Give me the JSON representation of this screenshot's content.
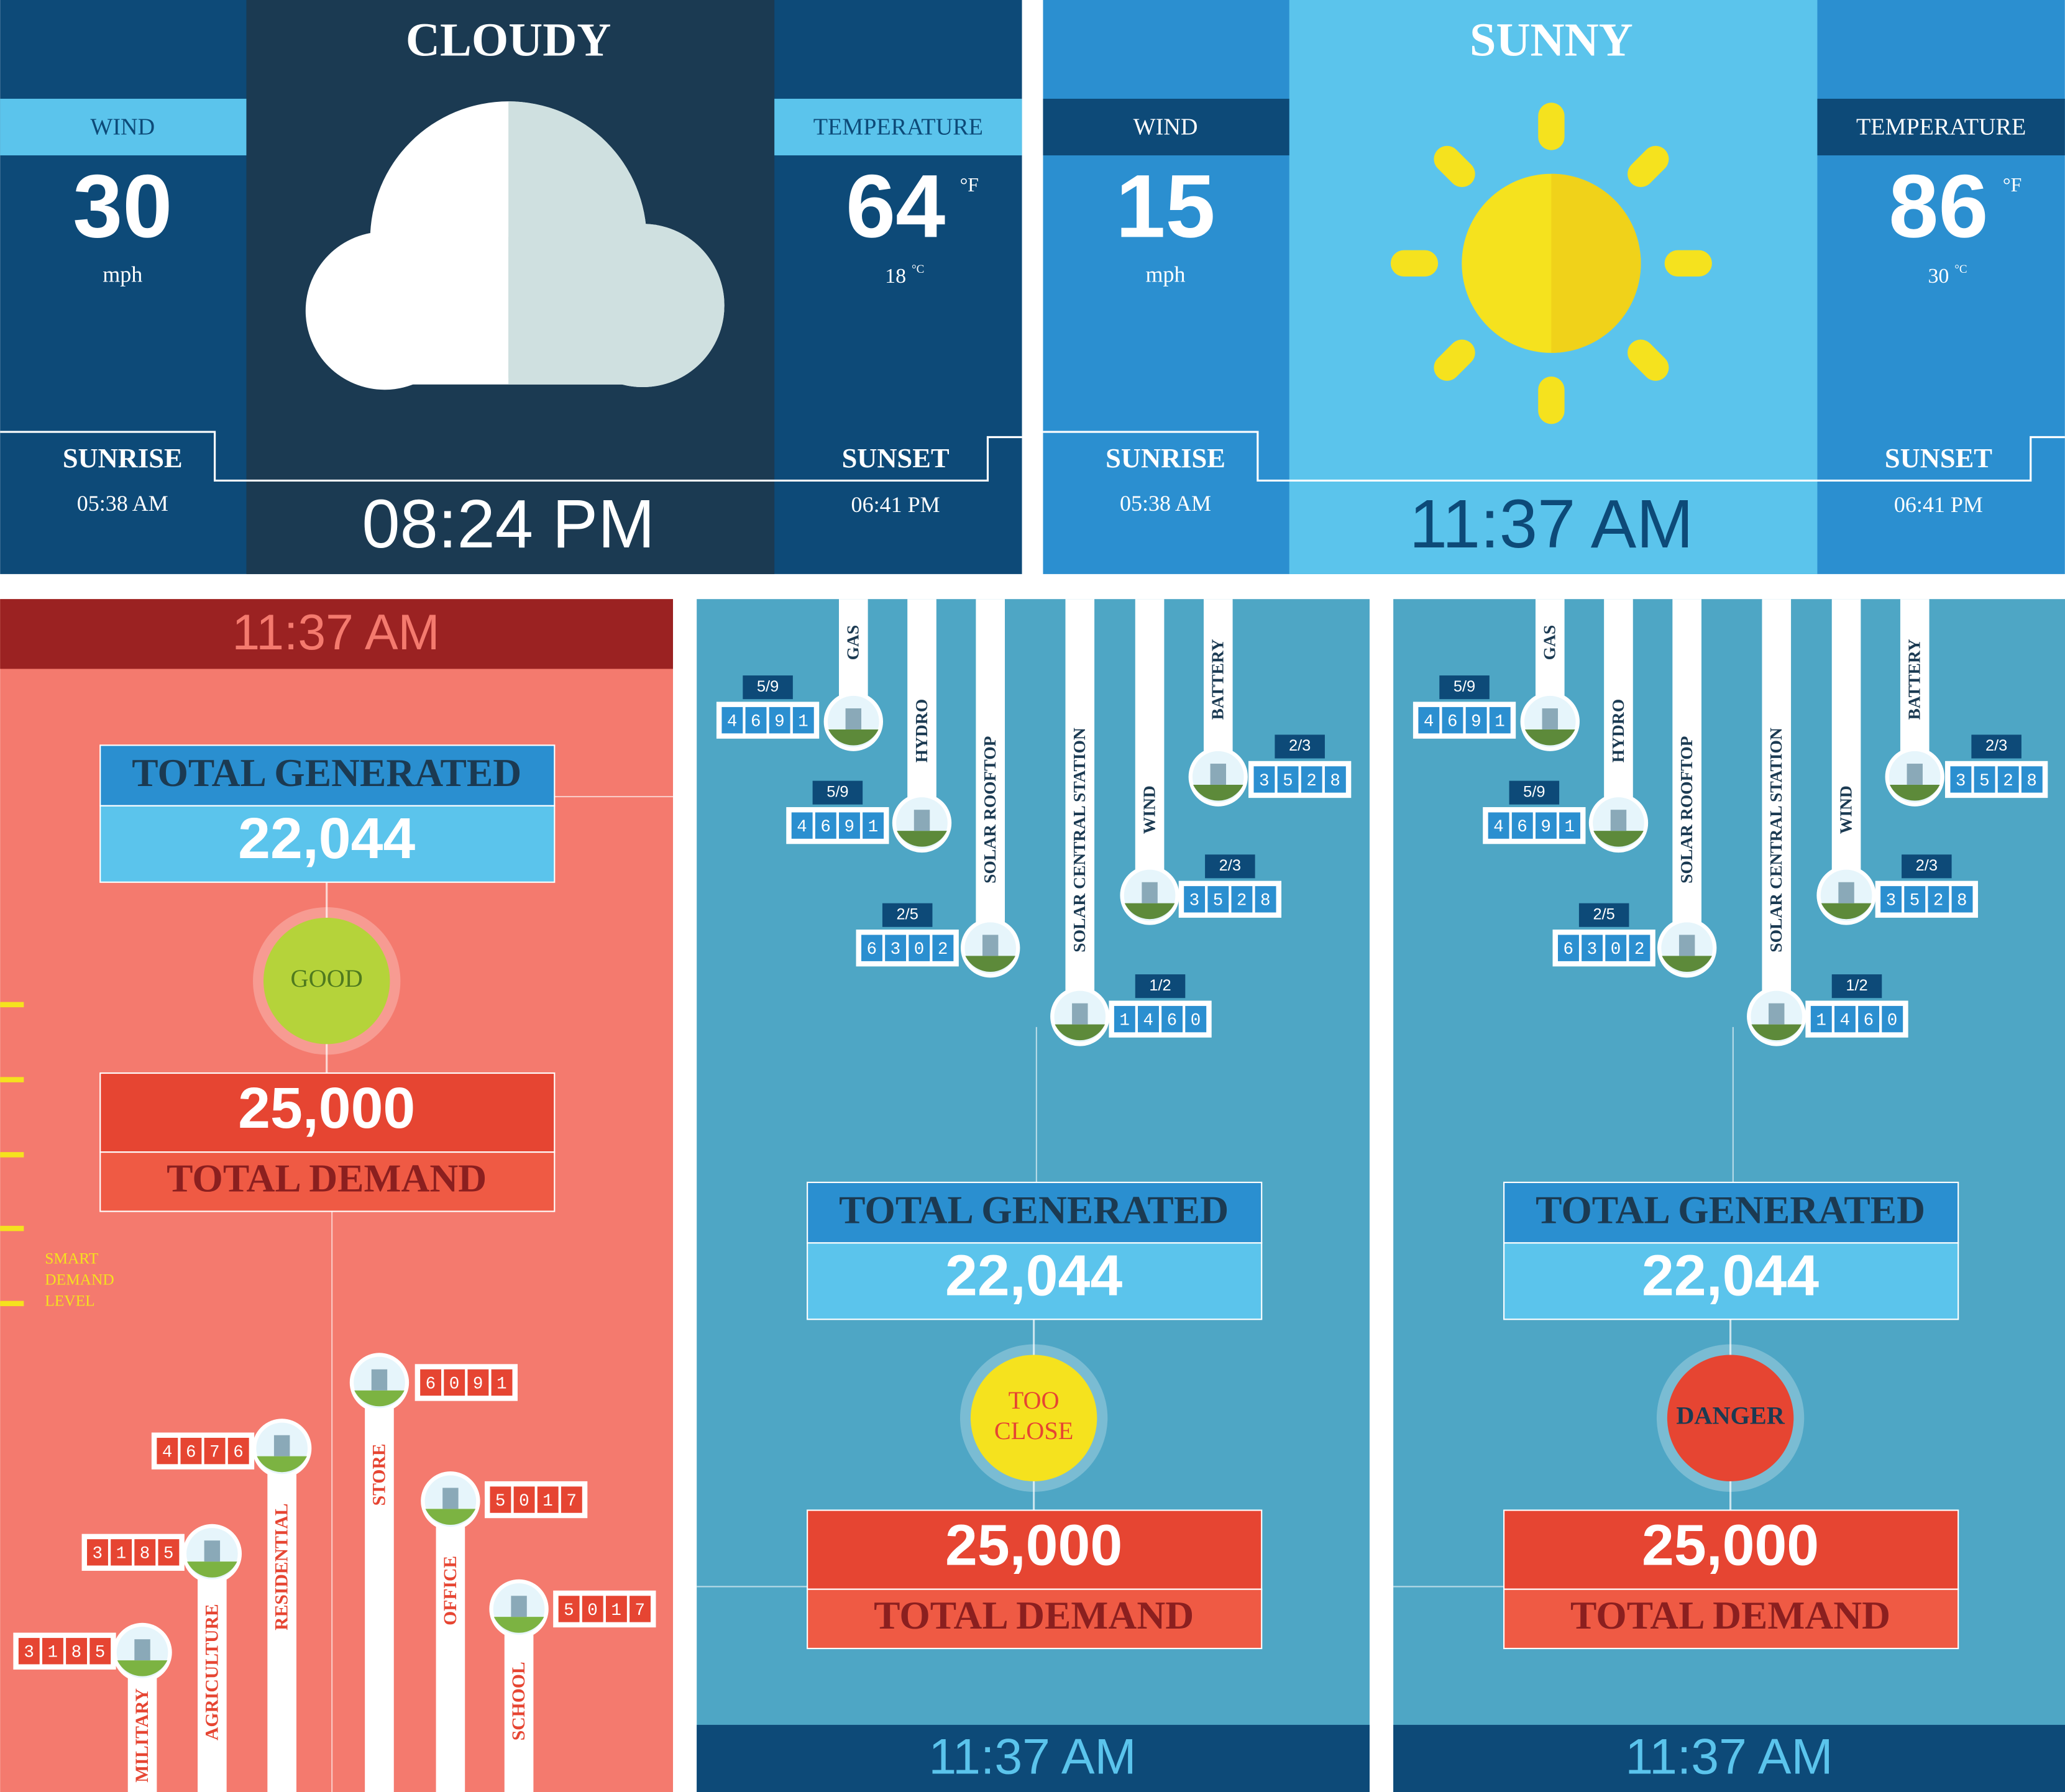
{
  "weather": [
    {
      "condition": "CLOUDY",
      "wind_label": "WIND",
      "wind": "30",
      "wind_unit": "mph",
      "temp_label": "TEMPERATURE",
      "temp_f": "64",
      "unit_f": "°F",
      "temp_c": "18",
      "unit_c": "°C",
      "sunrise_label": "SUNRISE",
      "sunrise": "05:38 AM",
      "sunset_label": "SUNSET",
      "sunset": "06:41 PM",
      "time": "08:24 PM"
    },
    {
      "condition": "SUNNY",
      "wind_label": "WIND",
      "wind": "15",
      "wind_unit": "mph",
      "temp_label": "TEMPERATURE",
      "temp_f": "86",
      "unit_f": "°F",
      "temp_c": "30",
      "unit_c": "°C",
      "sunrise_label": "SUNRISE",
      "sunrise": "05:38 AM",
      "sunset_label": "SUNSET",
      "sunset": "06:41 PM",
      "time": "11:37 AM"
    }
  ],
  "demand_panel": {
    "time": "11:37 AM",
    "generated_label": "TOTAL GENERATED",
    "generated": "22,044",
    "status": [
      "GOOD"
    ],
    "demand": "25,000",
    "demand_label": "TOTAL DEMAND",
    "smart_label": [
      "SMART",
      "DEMAND",
      "LEVEL"
    ],
    "consumers": [
      {
        "name": "MILITARY",
        "reading": "3185"
      },
      {
        "name": "AGRICULTURE",
        "reading": "3185"
      },
      {
        "name": "RESIDENTIAL",
        "reading": "4676"
      },
      {
        "name": "STORE",
        "reading": "6091"
      },
      {
        "name": "OFFICE",
        "reading": "5017"
      },
      {
        "name": "SCHOOL",
        "reading": "5017"
      }
    ]
  },
  "supply_panels": [
    {
      "time": "11:37 AM",
      "generated_label": "TOTAL GENERATED",
      "generated": "22,044",
      "status": [
        "TOO",
        "CLOSE"
      ],
      "demand": "25,000",
      "demand_label": "TOTAL DEMAND",
      "sources": [
        {
          "name": "GAS",
          "fraction": "5/9",
          "reading": "4691"
        },
        {
          "name": "HYDRO",
          "fraction": "5/9",
          "reading": "4691"
        },
        {
          "name": "SOLAR ROOFTOP",
          "fraction": "2/5",
          "reading": "6302"
        },
        {
          "name": "SOLAR CENTRAL STATION",
          "fraction": "1/2",
          "reading": "1460"
        },
        {
          "name": "WIND",
          "fraction": "2/3",
          "reading": "3528"
        },
        {
          "name": "BATTERY",
          "fraction": "2/3",
          "reading": "3528"
        }
      ]
    },
    {
      "time": "11:37 AM",
      "generated_label": "TOTAL GENERATED",
      "generated": "22,044",
      "status": [
        "DANGER"
      ],
      "demand": "25,000",
      "demand_label": "TOTAL DEMAND",
      "sources": [
        {
          "name": "GAS",
          "fraction": "5/9",
          "reading": "4691"
        },
        {
          "name": "HYDRO",
          "fraction": "5/9",
          "reading": "4691"
        },
        {
          "name": "SOLAR ROOFTOP",
          "fraction": "2/5",
          "reading": "6302"
        },
        {
          "name": "SOLAR CENTRAL STATION",
          "fraction": "1/2",
          "reading": "1460"
        },
        {
          "name": "WIND",
          "fraction": "2/3",
          "reading": "3528"
        },
        {
          "name": "BATTERY",
          "fraction": "2/3",
          "reading": "3528"
        }
      ]
    }
  ]
}
